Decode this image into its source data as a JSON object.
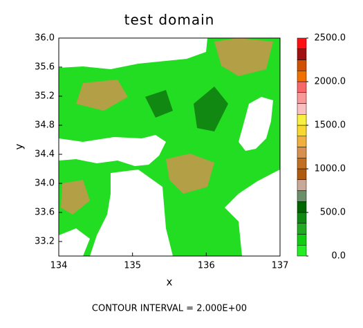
{
  "title": "test domain",
  "x_axis": {
    "label": "x",
    "lim": [
      134,
      137
    ],
    "ticks": [
      134,
      135,
      136,
      137
    ]
  },
  "y_axis": {
    "label": "y",
    "lim": [
      33.0,
      36.0
    ],
    "ticks": [
      {
        "value": 33.2,
        "label": "33.2"
      },
      {
        "value": 33.6,
        "label": "33.6"
      },
      {
        "value": 34.0,
        "label": "34.0"
      },
      {
        "value": 34.4,
        "label": "34.4"
      },
      {
        "value": 34.8,
        "label": "34.8"
      },
      {
        "value": 35.2,
        "label": "35.2"
      },
      {
        "value": 35.6,
        "label": "35.6"
      },
      {
        "value": 36.0,
        "label": "36.0"
      }
    ]
  },
  "colorbar": {
    "lim": [
      0,
      2500
    ],
    "ticks": [
      {
        "value": 0,
        "label": "0.0"
      },
      {
        "value": 500,
        "label": "500.0"
      },
      {
        "value": 1000,
        "label": "1000.0"
      },
      {
        "value": 1500,
        "label": "1500.0"
      },
      {
        "value": 2000,
        "label": "2000.0"
      },
      {
        "value": 2500,
        "label": "2500.0"
      }
    ],
    "colors": [
      "#22ee22",
      "#11cc11",
      "#22aa22",
      "#118811",
      "#006600",
      "#6b8e6b",
      "#c8a898",
      "#b05a10",
      "#c07020",
      "#d89050",
      "#f0b040",
      "#f8d830",
      "#f8f040",
      "#f8c0c0",
      "#f89898",
      "#f86868",
      "#f07000",
      "#d05000",
      "#a01010",
      "#ff1010"
    ]
  },
  "footer": "CONTOUR INTERVAL = 2.000E+00"
}
